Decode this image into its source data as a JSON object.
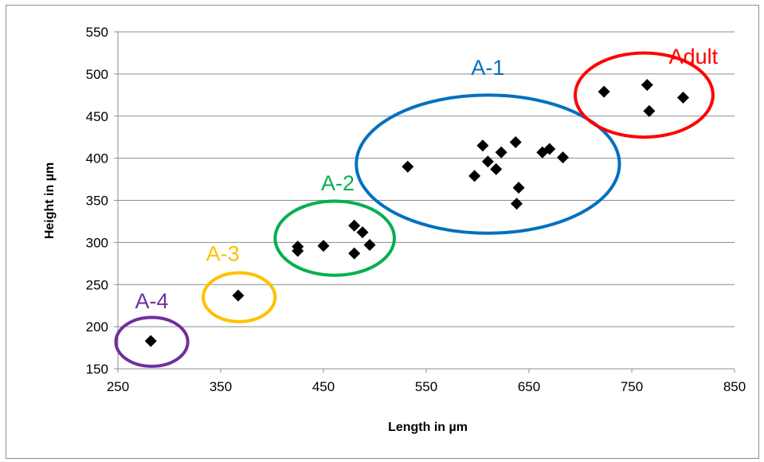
{
  "chart_data": {
    "type": "scatter",
    "xlabel": "Length in µm",
    "ylabel": "Height in µm",
    "xlim": [
      250,
      850
    ],
    "ylim": [
      150,
      550
    ],
    "x_ticks": [
      250,
      350,
      450,
      550,
      650,
      750,
      850
    ],
    "y_ticks": [
      150,
      200,
      250,
      300,
      350,
      400,
      450,
      500,
      550
    ],
    "grid": "horizontal",
    "marker": "diamond",
    "marker_color": "#000000",
    "points": [
      {
        "x": 282,
        "y": 183
      },
      {
        "x": 367,
        "y": 237
      },
      {
        "x": 425,
        "y": 290
      },
      {
        "x": 425,
        "y": 295
      },
      {
        "x": 450,
        "y": 296
      },
      {
        "x": 480,
        "y": 287
      },
      {
        "x": 480,
        "y": 320
      },
      {
        "x": 488,
        "y": 312
      },
      {
        "x": 495,
        "y": 297
      },
      {
        "x": 532,
        "y": 390
      },
      {
        "x": 597,
        "y": 379
      },
      {
        "x": 605,
        "y": 415
      },
      {
        "x": 610,
        "y": 396
      },
      {
        "x": 618,
        "y": 387
      },
      {
        "x": 623,
        "y": 407
      },
      {
        "x": 637,
        "y": 419
      },
      {
        "x": 640,
        "y": 365
      },
      {
        "x": 638,
        "y": 346
      },
      {
        "x": 663,
        "y": 407
      },
      {
        "x": 670,
        "y": 411
      },
      {
        "x": 683,
        "y": 401
      },
      {
        "x": 723,
        "y": 479
      },
      {
        "x": 765,
        "y": 487
      },
      {
        "x": 767,
        "y": 456
      },
      {
        "x": 800,
        "y": 472
      }
    ],
    "clusters": [
      {
        "label": "A-4",
        "color": "#7030a0",
        "cx": 283,
        "cy": 182,
        "rx": 35,
        "ry": 29,
        "label_x": 283,
        "label_y": 222
      },
      {
        "label": "A-3",
        "color": "#ffc000",
        "cx": 368,
        "cy": 235,
        "rx": 35,
        "ry": 29,
        "label_x": 352,
        "label_y": 278
      },
      {
        "label": "A-2",
        "color": "#00b050",
        "cx": 461,
        "cy": 305,
        "rx": 58,
        "ry": 44,
        "label_x": 464,
        "label_y": 362
      },
      {
        "label": "A-1",
        "color": "#0070c0",
        "cx": 610,
        "cy": 393,
        "rx": 128,
        "ry": 82,
        "label_x": 610,
        "label_y": 499
      },
      {
        "label": "Adult",
        "color": "#ff0000",
        "cx": 762,
        "cy": 475,
        "rx": 67,
        "ry": 50,
        "label_x": 810,
        "label_y": 512
      }
    ]
  }
}
